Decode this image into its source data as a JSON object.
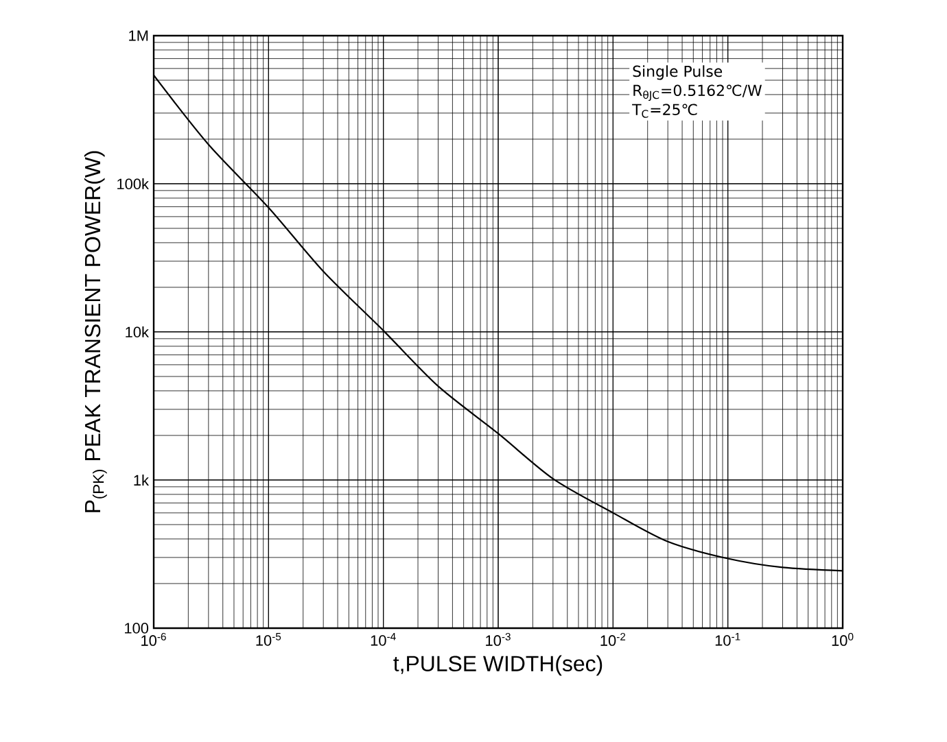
{
  "chart_data": {
    "type": "line",
    "xlabel": "t,PULSE WIDTH(sec)",
    "ylabel": "P$_{(PK)}$ PEAK TRANSIENT POWER(W)",
    "log": "xy",
    "grid": true,
    "marker": "none",
    "line_style": "solid",
    "xlim": [
      1e-06,
      1
    ],
    "ylim": [
      100,
      1000000
    ],
    "xticks": [
      {
        "value": 1e-06,
        "label": "10$^{-6}$"
      },
      {
        "value": 1e-05,
        "label": "10$^{-5}$"
      },
      {
        "value": 0.0001,
        "label": "10$^{-4}$"
      },
      {
        "value": 0.001,
        "label": "10$^{-3}$"
      },
      {
        "value": 0.01,
        "label": "10$^{-2}$"
      },
      {
        "value": 0.1,
        "label": "10$^{-1}$"
      },
      {
        "value": 1,
        "label": "10$^{0}$"
      }
    ],
    "yticks": [
      {
        "value": 100,
        "label": "100"
      },
      {
        "value": 1000,
        "label": "1k"
      },
      {
        "value": 10000,
        "label": "10k"
      },
      {
        "value": 100000,
        "label": "100k"
      },
      {
        "value": 1000000,
        "label": "1M"
      }
    ],
    "annotations": [
      "Single Pulse",
      "R$_{θJC}$=0.5162℃/W",
      "T$_{C}$=25℃"
    ],
    "series": [
      {
        "color": "#000000",
        "x": [
          1e-06,
          3e-06,
          1e-05,
          3e-05,
          0.0001,
          0.0003,
          0.001,
          0.003,
          0.01,
          0.03,
          0.1,
          0.3,
          1
        ],
        "values": [
          540000,
          184000,
          69000,
          25600,
          10200,
          4300,
          2060,
          1020,
          600,
          384,
          295,
          257,
          244
        ]
      }
    ]
  }
}
